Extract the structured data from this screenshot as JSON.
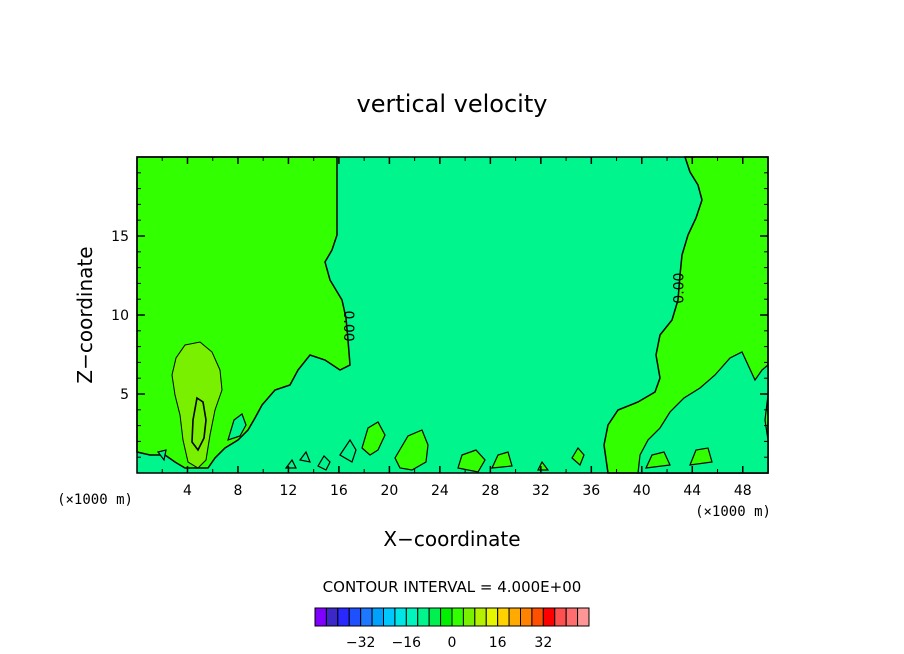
{
  "chart_data": {
    "type": "contour",
    "title": "vertical velocity",
    "xlabel": "X−coordinate",
    "ylabel": "Z−coordinate",
    "x_unit": "(×1000 m)",
    "y_unit": "(×1000 m)",
    "xlim": [
      0,
      50
    ],
    "ylim": [
      0,
      20
    ],
    "x_ticks": [
      4,
      8,
      12,
      16,
      20,
      24,
      28,
      32,
      36,
      40,
      44,
      48
    ],
    "x_tick_labels": [
      "4",
      "8",
      "12",
      "16",
      "20",
      "24",
      "28",
      "32",
      "36",
      "40",
      "44",
      "48"
    ],
    "y_ticks": [
      5,
      10,
      15
    ],
    "y_tick_labels": [
      "5",
      "10",
      "15"
    ],
    "contour_interval_text": "CONTOUR INTERVAL = 4.000E+00",
    "contour_labels": [
      {
        "text": "0.00",
        "x": 16.8,
        "y": 9.3,
        "rotate": 90
      },
      {
        "text": "0.00",
        "x": 42.9,
        "y": 11.7,
        "rotate": -90
      }
    ],
    "colorbar": {
      "colors": [
        "#8000ff",
        "#3c28c8",
        "#2828ff",
        "#1e50ff",
        "#1e78ff",
        "#00a0ff",
        "#00c8ff",
        "#00e6e6",
        "#00f5be",
        "#00f58c",
        "#00f050",
        "#00f000",
        "#32ff00",
        "#78f000",
        "#b4f000",
        "#e6f500",
        "#ffd200",
        "#ffaa00",
        "#ff8200",
        "#ff5000",
        "#ff0000",
        "#ff5050",
        "#ff6e6e",
        "#ff9696"
      ],
      "tick_labels": [
        "−32",
        "−16",
        "0",
        "16",
        "32"
      ],
      "tick_values": [
        -32,
        -16,
        0,
        16,
        32
      ],
      "vmin": -48,
      "vmax": 48
    },
    "background_color": "#00f58c",
    "positive_color": "#32ff00",
    "strong_positive_color": "#78f000"
  }
}
